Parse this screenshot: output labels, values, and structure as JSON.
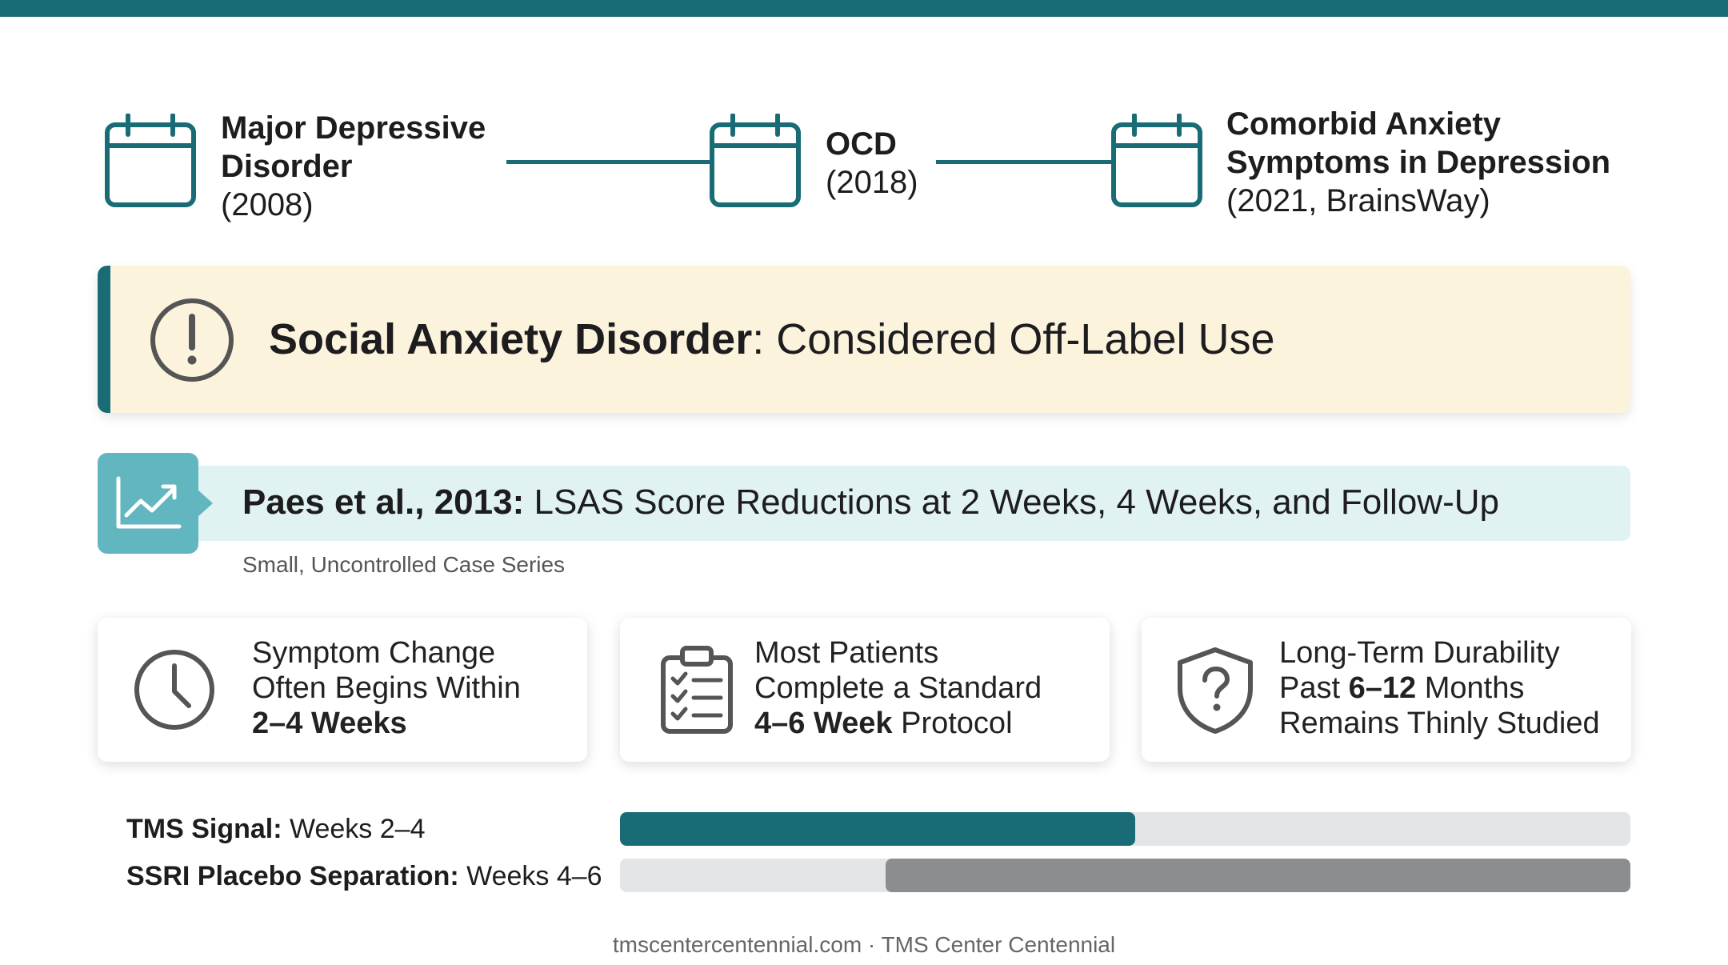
{
  "colors": {
    "brand": "#196b75",
    "callout_bg": "#fbf3dc",
    "study_bg": "#e1f2f3",
    "study_tile": "#62b6c0",
    "bar_primary": "#196b75",
    "bar_secondary": "#8a8e90",
    "bar_track": "#e4e5e7"
  },
  "timeline": [
    {
      "icon": "calendar-icon",
      "title_line1": "Major Depressive",
      "title_line2": "Disorder",
      "detail": "(2008)"
    },
    {
      "icon": "calendar-icon",
      "title_line1": "OCD",
      "title_line2": "",
      "detail": "(2018)"
    },
    {
      "icon": "calendar-icon",
      "title_line1": "Comorbid Anxiety",
      "title_line2": "Symptoms in Depression",
      "detail": "(2021, BrainsWay)"
    }
  ],
  "callout": {
    "icon": "alert-circle-icon",
    "bold": "Social Anxiety Disorder",
    "rest": ": Considered Off-Label Use"
  },
  "study": {
    "icon": "trending-chart-icon",
    "bold": "Paes et al., 2013:",
    "rest": " LSAS Score Reductions at 2 Weeks, 4 Weeks, and Follow-Up",
    "subtitle": "Small, Uncontrolled Case Series"
  },
  "cards": [
    {
      "icon": "clock-icon",
      "line1": "Symptom Change",
      "line2": "Often Begins Within",
      "line3_bold": "2–4 Weeks",
      "line3_rest": ""
    },
    {
      "icon": "clipboard-checklist-icon",
      "line1": "Most Patients",
      "line2": "Complete a Standard",
      "line3_bold": "4–6 Week",
      "line3_rest": " Protocol"
    },
    {
      "icon": "shield-question-icon",
      "line1": "Long-Term Durability",
      "line2_pre": "Past ",
      "line2_bold": "6–12",
      "line2_post": " Months",
      "line3": "Remains Thinly Studied"
    }
  ],
  "bars": [
    {
      "label_bold": "TMS Signal:",
      "label_rest": " Weeks 2–4",
      "start_fraction": 0.0,
      "end_fraction": 0.51,
      "color": "#196b75"
    },
    {
      "label_bold": "SSRI Placebo Separation:",
      "label_rest": " Weeks 4–6",
      "start_fraction": 0.263,
      "end_fraction": 1.0,
      "color": "#8a8e90"
    }
  ],
  "footer": "tmscentercentennial.com · TMS Center Centennial"
}
